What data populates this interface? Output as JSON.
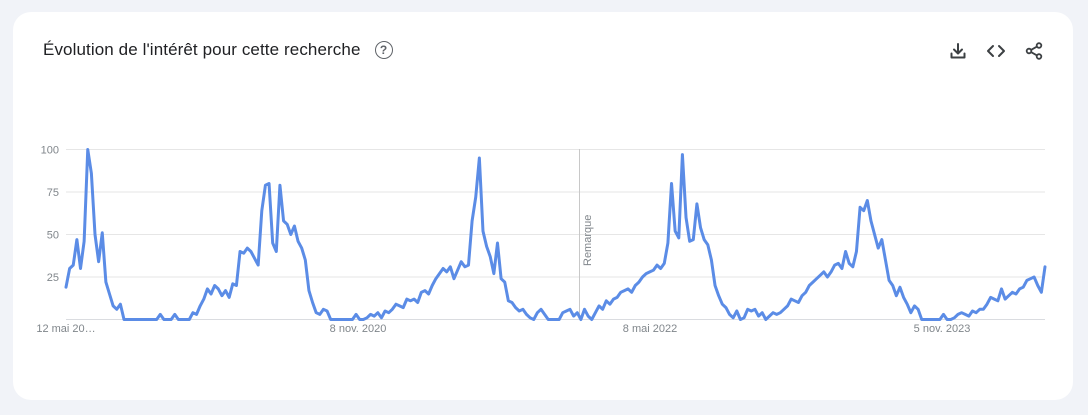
{
  "header": {
    "title": "Évolution de l'intérêt pour cette recherche",
    "help_icon": "help-circle-icon",
    "actions": [
      {
        "name": "download-button",
        "icon": "download-icon"
      },
      {
        "name": "embed-button",
        "icon": "code-icon"
      },
      {
        "name": "share-button",
        "icon": "share-icon"
      }
    ]
  },
  "colors": {
    "line": "#5b8ce6",
    "grid": "#e6e6e6",
    "axis": "#dadce0"
  },
  "chart_data": {
    "type": "line",
    "title": "",
    "xlabel": "",
    "ylabel": "",
    "ylim": [
      0,
      100
    ],
    "yticks": [
      25,
      50,
      75,
      100
    ],
    "x_tick_labels": [
      "12 mai 20…",
      "8 nov. 2020",
      "8 mai 2022",
      "5 nov. 2023"
    ],
    "note_label": "Remarque",
    "grid": true,
    "series": [
      {
        "values": [
          19,
          30,
          32,
          47,
          30,
          46,
          100,
          86,
          50,
          34,
          51,
          22,
          15,
          8,
          6,
          9,
          0,
          0,
          0,
          0,
          0,
          0,
          0,
          0,
          0,
          0,
          3,
          0,
          0,
          0,
          3,
          0,
          0,
          0,
          0,
          4,
          3,
          8,
          12,
          18,
          15,
          20,
          18,
          14,
          17,
          13,
          21,
          20,
          40,
          39,
          42,
          40,
          36,
          32,
          64,
          79,
          80,
          45,
          40,
          79,
          58,
          56,
          50,
          55,
          46,
          42,
          35,
          17,
          10,
          4,
          3,
          6,
          5,
          0,
          0,
          0,
          0,
          0,
          0,
          0,
          3,
          0,
          0,
          1,
          3,
          2,
          4,
          1,
          5,
          4,
          6,
          9,
          8,
          7,
          12,
          11,
          12,
          10,
          16,
          17,
          15,
          20,
          24,
          27,
          30,
          28,
          31,
          24,
          29,
          34,
          31,
          32,
          58,
          72,
          95,
          52,
          43,
          37,
          27,
          45,
          24,
          22,
          11,
          10,
          7,
          5,
          6,
          3,
          1,
          0,
          4,
          6,
          3,
          0,
          0,
          0,
          0,
          4,
          5,
          6,
          2,
          4,
          0,
          6,
          2,
          0,
          4,
          8,
          6,
          11,
          9,
          12,
          13,
          16,
          17,
          18,
          16,
          20,
          22,
          25,
          27,
          28,
          29,
          32,
          30,
          33,
          45,
          80,
          52,
          48,
          97,
          60,
          46,
          47,
          68,
          54,
          47,
          44,
          35,
          20,
          14,
          9,
          7,
          3,
          1,
          5,
          0,
          1,
          6,
          5,
          6,
          2,
          4,
          0,
          2,
          4,
          3,
          4,
          6,
          8,
          12,
          11,
          10,
          14,
          16,
          20,
          22,
          24,
          26,
          28,
          25,
          28,
          32,
          33,
          30,
          40,
          33,
          31,
          40,
          66,
          64,
          70,
          58,
          50,
          42,
          47,
          35,
          23,
          20,
          14,
          19,
          13,
          9,
          4,
          8,
          6,
          0,
          0,
          0,
          0,
          0,
          0,
          3,
          0,
          0,
          1,
          3,
          4,
          3,
          2,
          5,
          4,
          6,
          6,
          9,
          13,
          12,
          11,
          18,
          12,
          14,
          16,
          15,
          18,
          19,
          23,
          24,
          25,
          20,
          16,
          31
        ]
      }
    ]
  }
}
